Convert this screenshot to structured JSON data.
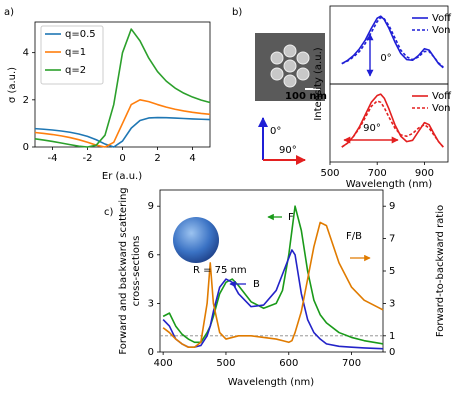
{
  "chart_data": [
    {
      "type": "line",
      "panel_label": "a)",
      "xlabel": "Er (a.u.)",
      "ylabel": "σ (a.u.)",
      "x": [
        -5,
        -4.5,
        -4,
        -3.5,
        -3,
        -2.5,
        -2,
        -1.5,
        -1,
        -0.5,
        0,
        0.5,
        1,
        1.5,
        2,
        2.5,
        3,
        3.5,
        4,
        4.5,
        5
      ],
      "series": [
        {
          "name": "q=0.5",
          "color": "#1f77b4",
          "values": [
            0.779,
            0.753,
            0.721,
            0.679,
            0.625,
            0.552,
            0.45,
            0.308,
            0.125,
            0,
            0.25,
            0.8,
            1.125,
            1.231,
            1.25,
            1.241,
            1.225,
            1.208,
            1.191,
            1.176,
            1.163
          ]
        },
        {
          "name": "q=1",
          "color": "#ff7f0e",
          "values": [
            0.615,
            0.576,
            0.529,
            0.472,
            0.4,
            0.31,
            0.2,
            0.077,
            0,
            0.2,
            1,
            1.8,
            2,
            1.923,
            1.8,
            1.69,
            1.6,
            1.528,
            1.471,
            1.424,
            1.385
          ]
        },
        {
          "name": "q=2",
          "color": "#2ca02c",
          "values": [
            0.346,
            0.294,
            0.235,
            0.17,
            0.1,
            0.034,
            0,
            0.077,
            0.5,
            1.8,
            4,
            5,
            4.5,
            3.769,
            3.2,
            2.793,
            2.5,
            2.283,
            2.118,
            1.988,
            1.885
          ]
        }
      ],
      "xlim": [
        -5,
        5
      ],
      "ylim": [
        0,
        5.3
      ],
      "xticks": [
        -4,
        -2,
        0,
        2,
        4
      ],
      "yticks": [
        0,
        2,
        4
      ],
      "legend": "upper left"
    },
    {
      "type": "line",
      "panel_label": "b)",
      "ylabel": "Intensity (a.u.)",
      "x": [
        550,
        575,
        600,
        625,
        650,
        675,
        700,
        715,
        730,
        750,
        775,
        800,
        825,
        850,
        875,
        900,
        920,
        940,
        960,
        980
      ],
      "series": [
        {
          "name": "Voff",
          "color": "#1f1fd6",
          "dash": false,
          "values": [
            0.3,
            0.35,
            0.42,
            0.52,
            0.65,
            0.82,
            0.97,
            1.0,
            0.95,
            0.82,
            0.62,
            0.45,
            0.36,
            0.35,
            0.42,
            0.52,
            0.5,
            0.4,
            0.3,
            0.24
          ]
        },
        {
          "name": "Von",
          "color": "#1f1fd6",
          "dash": true,
          "values": [
            0.3,
            0.34,
            0.4,
            0.48,
            0.6,
            0.76,
            0.92,
            0.98,
            0.96,
            0.86,
            0.68,
            0.5,
            0.4,
            0.36,
            0.4,
            0.48,
            0.48,
            0.4,
            0.31,
            0.25
          ]
        }
      ],
      "xlim": [
        500,
        1000
      ],
      "ylim": [
        0,
        1.15
      ],
      "legend": "upper right",
      "annotations": [
        "0°"
      ],
      "inset_labels": {
        "scale_bar": "100 nm",
        "polarization": [
          "0°",
          "90°"
        ]
      }
    },
    {
      "type": "line",
      "xlabel": "Wavelength (nm)",
      "x": [
        550,
        575,
        600,
        625,
        650,
        675,
        700,
        715,
        730,
        750,
        775,
        800,
        825,
        850,
        875,
        900,
        920,
        940,
        960,
        980
      ],
      "series": [
        {
          "name": "Voff",
          "color": "#e32020",
          "dash": false,
          "values": [
            0.22,
            0.28,
            0.38,
            0.52,
            0.7,
            0.88,
            0.98,
            1.0,
            0.94,
            0.78,
            0.55,
            0.38,
            0.3,
            0.32,
            0.45,
            0.58,
            0.55,
            0.42,
            0.3,
            0.22
          ]
        },
        {
          "name": "Von",
          "color": "#e32020",
          "dash": true,
          "values": [
            0.22,
            0.28,
            0.38,
            0.5,
            0.66,
            0.82,
            0.9,
            0.88,
            0.8,
            0.66,
            0.5,
            0.4,
            0.38,
            0.42,
            0.5,
            0.55,
            0.5,
            0.4,
            0.3,
            0.22
          ]
        }
      ],
      "xlim": [
        500,
        1000
      ],
      "ylim": [
        0,
        1.15
      ],
      "xticks": [
        500,
        700,
        900
      ],
      "legend": "upper right",
      "annotations": [
        "90°"
      ]
    },
    {
      "type": "line",
      "panel_label": "c)",
      "xlabel": "Wavelength (nm)",
      "ylabel": [
        "Forward and backward scattering",
        "cross-sections"
      ],
      "y2label": "Forward-to-backward ratio",
      "annotations": [
        "R = 75 nm"
      ],
      "x": [
        400,
        410,
        420,
        430,
        440,
        450,
        460,
        470,
        475,
        480,
        490,
        500,
        510,
        520,
        540,
        560,
        580,
        590,
        600,
        605,
        610,
        620,
        630,
        640,
        650,
        660,
        680,
        700,
        720,
        750
      ],
      "series": [
        {
          "name": "F",
          "color": "#1a9a1a",
          "values": [
            2.2,
            2.4,
            1.6,
            1.1,
            0.8,
            0.6,
            0.6,
            1.2,
            1.6,
            2.2,
            3.6,
            4.3,
            4.5,
            4.1,
            3.1,
            2.7,
            3.0,
            3.8,
            6.0,
            7.5,
            9.0,
            7.5,
            5.0,
            3.2,
            2.3,
            1.8,
            1.2,
            0.9,
            0.7,
            0.5
          ]
        },
        {
          "name": "B",
          "color": "#2323c8",
          "values": [
            2.0,
            1.6,
            0.8,
            0.5,
            0.3,
            0.3,
            0.4,
            1.0,
            1.6,
            2.5,
            4.0,
            4.5,
            4.3,
            3.6,
            2.8,
            2.9,
            3.8,
            4.8,
            5.8,
            6.3,
            6.0,
            3.6,
            2.0,
            1.2,
            0.8,
            0.5,
            0.35,
            0.3,
            0.25,
            0.2
          ]
        },
        {
          "name": "F/B",
          "color": "#e07b00",
          "axis": "y2",
          "values": [
            1.5,
            1.2,
            0.8,
            0.5,
            0.3,
            0.3,
            0.6,
            3.0,
            5.5,
            3.0,
            1.2,
            0.8,
            0.9,
            1.0,
            1.0,
            0.9,
            0.8,
            0.7,
            0.6,
            0.7,
            1.2,
            2.5,
            4.5,
            6.5,
            8.0,
            7.8,
            5.5,
            4.0,
            3.2,
            2.6
          ]
        }
      ],
      "reference_line": {
        "value": 1,
        "axis": "y2"
      },
      "xlim": [
        395,
        750
      ],
      "ylim": [
        0,
        10
      ],
      "xticks": [
        400,
        500,
        600,
        700
      ],
      "yticks": [
        0,
        3,
        6,
        9
      ],
      "y2lim": [
        0,
        10
      ],
      "y2ticks": [
        0,
        1,
        3,
        5,
        7,
        9
      ]
    }
  ]
}
